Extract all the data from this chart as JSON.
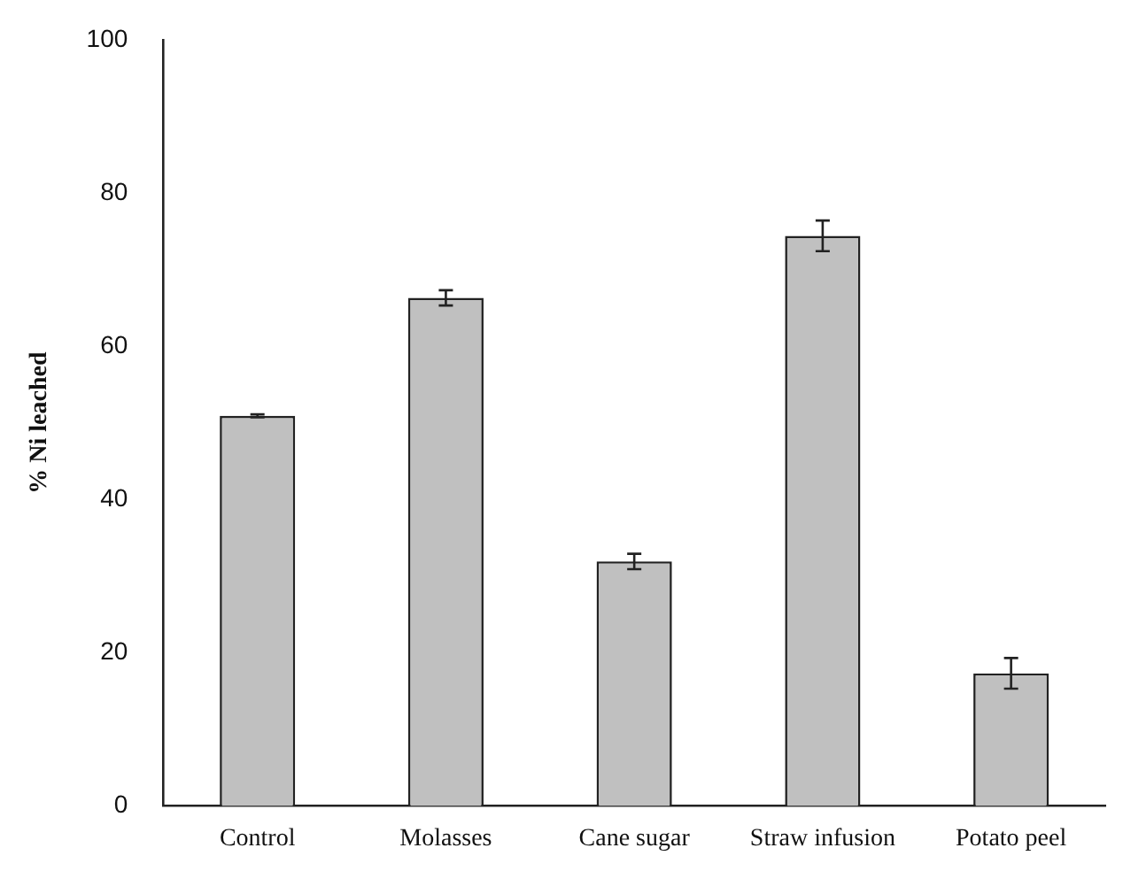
{
  "chart_data": {
    "type": "bar",
    "ylabel": "% Ni leached",
    "categories": [
      "Control",
      "Molasses",
      "Cane sugar",
      "Straw infusion",
      "Potato peel"
    ],
    "values": [
      50.9,
      66.3,
      31.9,
      74.4,
      17.3
    ],
    "errors": [
      0.2,
      1,
      1,
      2,
      2
    ],
    "color": "#c0c0c0",
    "ylim": [
      0,
      100
    ],
    "yticks": [
      0,
      20,
      40,
      60,
      80,
      100
    ],
    "grid": false,
    "legend": false
  }
}
